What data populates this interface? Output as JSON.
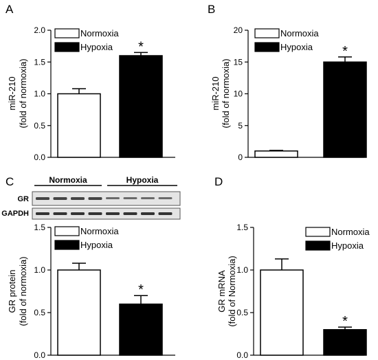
{
  "colors": {
    "normoxia_fill": "#ffffff",
    "hypoxia_fill": "#000000",
    "axis": "#000000"
  },
  "blot": {
    "groups": [
      "Normoxia",
      "Hypoxia"
    ],
    "lanes_per_group": 4,
    "rows": [
      "GR",
      "GAPDH"
    ]
  },
  "chart_data": [
    {
      "panel": "A",
      "type": "bar",
      "categories": [
        "Normoxia",
        "Hypoxia"
      ],
      "values": [
        1.0,
        1.6
      ],
      "errors": [
        0.08,
        0.05
      ],
      "significant": [
        false,
        true
      ],
      "significance_marker": "*",
      "ylabel": [
        "miR-210",
        "(fold of normoxia)"
      ],
      "ylim": [
        0,
        2.0
      ],
      "yticks": [
        "0.0",
        "0.5",
        "1.0",
        "1.5",
        "2.0"
      ],
      "legend": [
        "Normoxia",
        "Hypoxia"
      ],
      "legend_position": "top-left"
    },
    {
      "panel": "B",
      "type": "bar",
      "categories": [
        "Normoxia",
        "Hypoxia"
      ],
      "values": [
        1.0,
        15.0
      ],
      "errors": [
        0.1,
        0.8
      ],
      "significant": [
        false,
        true
      ],
      "significance_marker": "*",
      "ylabel": [
        "miR-210",
        "(fold of normoxia)"
      ],
      "ylim": [
        0,
        20
      ],
      "yticks": [
        "0",
        "5",
        "10",
        "15",
        "20"
      ],
      "legend": [
        "Normoxia",
        "Hypoxia"
      ],
      "legend_position": "top-left"
    },
    {
      "panel": "C",
      "type": "bar",
      "categories": [
        "Normoxia",
        "Hypoxia"
      ],
      "values": [
        1.0,
        0.6
      ],
      "errors": [
        0.08,
        0.1
      ],
      "significant": [
        false,
        true
      ],
      "significance_marker": "*",
      "ylabel": [
        "GR protein",
        "(fold of normoxia)"
      ],
      "ylim": [
        0,
        1.5
      ],
      "yticks": [
        "0.0",
        "0.5",
        "1.0",
        "1.5"
      ],
      "legend": [
        "Normoxia",
        "Hypoxia"
      ],
      "legend_position": "top-left"
    },
    {
      "panel": "D",
      "type": "bar",
      "categories": [
        "Normoxia",
        "Hypoxia"
      ],
      "values": [
        1.0,
        0.3
      ],
      "errors": [
        0.13,
        0.03
      ],
      "significant": [
        false,
        true
      ],
      "significance_marker": "*",
      "ylabel": [
        "GR mRNA",
        "(fold of Normoxia)"
      ],
      "ylim": [
        0,
        1.5
      ],
      "yticks": [
        "0.0",
        "0.5",
        "1.0",
        "1.5"
      ],
      "legend": [
        "Normoxia",
        "Hypoxia"
      ],
      "legend_position": "top-right"
    }
  ]
}
